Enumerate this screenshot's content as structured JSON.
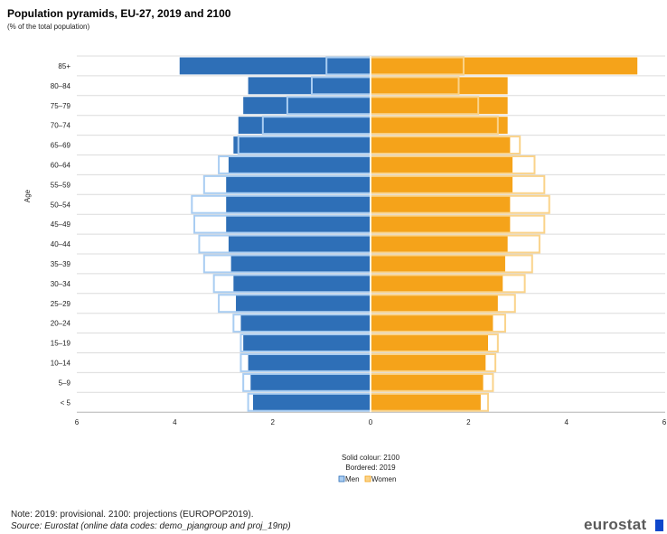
{
  "chart_data": {
    "type": "bar",
    "title": "Population pyramids, EU-27, 2019 and 2100",
    "subtitle": "(% of the total population)",
    "ylabel": "Age",
    "categories": [
      "85+",
      "80–84",
      "75–79",
      "70–74",
      "65–69",
      "60–64",
      "55–59",
      "50–54",
      "45–49",
      "40–44",
      "35–39",
      "30–34",
      "25–29",
      "20–24",
      "15–19",
      "10–14",
      "5–9",
      "< 5"
    ],
    "xlim": [
      -6,
      6
    ],
    "x_tick_labels": [
      "6",
      "4",
      "2",
      "0",
      "2",
      "4",
      "6"
    ],
    "series": [
      {
        "name": "Men",
        "year": "2100",
        "style": "solid",
        "color": "#2e6fb7",
        "values": [
          3.9,
          2.5,
          2.6,
          2.7,
          2.8,
          2.9,
          2.95,
          2.95,
          2.95,
          2.9,
          2.85,
          2.8,
          2.75,
          2.65,
          2.6,
          2.5,
          2.45,
          2.4
        ]
      },
      {
        "name": "Women",
        "year": "2100",
        "style": "solid",
        "color": "#f5a31a",
        "values": [
          5.45,
          2.8,
          2.8,
          2.8,
          2.85,
          2.9,
          2.9,
          2.85,
          2.85,
          2.8,
          2.75,
          2.7,
          2.6,
          2.5,
          2.4,
          2.35,
          2.3,
          2.25
        ]
      },
      {
        "name": "Men",
        "year": "2019",
        "style": "bordered",
        "color": "#a9cdf2",
        "values": [
          0.9,
          1.2,
          1.7,
          2.2,
          2.7,
          3.1,
          3.4,
          3.65,
          3.6,
          3.5,
          3.4,
          3.2,
          3.1,
          2.8,
          2.65,
          2.65,
          2.6,
          2.5
        ]
      },
      {
        "name": "Women",
        "year": "2019",
        "style": "bordered",
        "color": "#fad38a",
        "values": [
          1.9,
          1.8,
          2.2,
          2.6,
          3.05,
          3.35,
          3.55,
          3.65,
          3.55,
          3.45,
          3.3,
          3.15,
          2.95,
          2.75,
          2.6,
          2.55,
          2.5,
          2.4
        ]
      }
    ],
    "legend_note_1": "Solid colour: 2100",
    "legend_note_2": "Bordered: 2019",
    "legend": [
      "Men",
      "Women"
    ],
    "legend_placement": "bottom-center",
    "grid": true
  },
  "note": "Note: 2019: provisional. 2100: projections (EUROPOP2019).",
  "source": "Source: Eurostat (online data codes: demo_pjangroup and proj_19np)",
  "logo": "eurostat"
}
